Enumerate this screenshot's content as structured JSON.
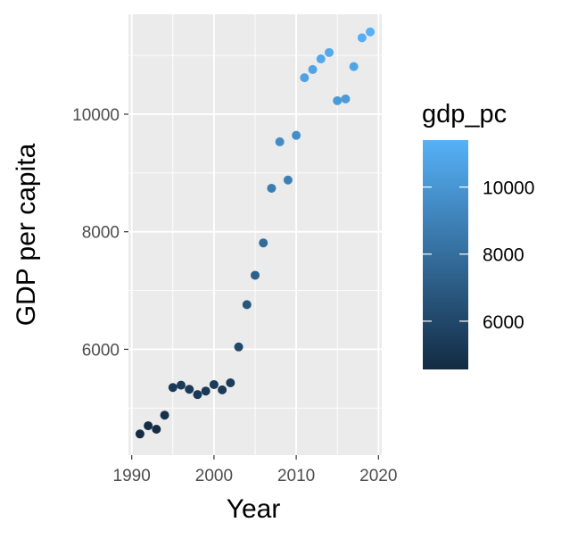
{
  "chart_data": {
    "type": "scatter",
    "xlabel": "Year",
    "ylabel": "GDP per capita",
    "xlim": [
      1989.6,
      2020.4
    ],
    "ylim": [
      4200,
      11700
    ],
    "x_ticks": [
      1990,
      2000,
      2010,
      2020
    ],
    "x_tick_labels": [
      "1990",
      "2000",
      "2010",
      "2020"
    ],
    "y_ticks": [
      6000,
      8000,
      10000
    ],
    "y_tick_labels": [
      "6000",
      "8000",
      "10000"
    ],
    "grid": true,
    "panel_background": "#ebebeb",
    "grid_color": "#ffffff",
    "legend": {
      "title": "gdp_pc",
      "position": "right",
      "type": "colorbar",
      "range": [
        4560,
        11400
      ],
      "ticks": [
        6000,
        8000,
        10000
      ],
      "tick_labels": [
        "6000",
        "8000",
        "10000"
      ],
      "color_low": "#132b43",
      "color_high": "#56b1f7"
    },
    "points": [
      {
        "x": 1991,
        "y": 4560
      },
      {
        "x": 1992,
        "y": 4700
      },
      {
        "x": 1993,
        "y": 4640
      },
      {
        "x": 1994,
        "y": 4880
      },
      {
        "x": 1995,
        "y": 5350
      },
      {
        "x": 1996,
        "y": 5390
      },
      {
        "x": 1997,
        "y": 5320
      },
      {
        "x": 1998,
        "y": 5230
      },
      {
        "x": 1999,
        "y": 5290
      },
      {
        "x": 2000,
        "y": 5400
      },
      {
        "x": 2001,
        "y": 5310
      },
      {
        "x": 2002,
        "y": 5430
      },
      {
        "x": 2003,
        "y": 6040
      },
      {
        "x": 2004,
        "y": 6760
      },
      {
        "x": 2005,
        "y": 7260
      },
      {
        "x": 2006,
        "y": 7810
      },
      {
        "x": 2007,
        "y": 8740
      },
      {
        "x": 2008,
        "y": 9530
      },
      {
        "x": 2009,
        "y": 8880
      },
      {
        "x": 2010,
        "y": 9640
      },
      {
        "x": 2011,
        "y": 10620
      },
      {
        "x": 2012,
        "y": 10760
      },
      {
        "x": 2013,
        "y": 10940
      },
      {
        "x": 2014,
        "y": 11050
      },
      {
        "x": 2015,
        "y": 10230
      },
      {
        "x": 2016,
        "y": 10260
      },
      {
        "x": 2017,
        "y": 10810
      },
      {
        "x": 2018,
        "y": 11300
      },
      {
        "x": 2019,
        "y": 11400
      }
    ]
  }
}
